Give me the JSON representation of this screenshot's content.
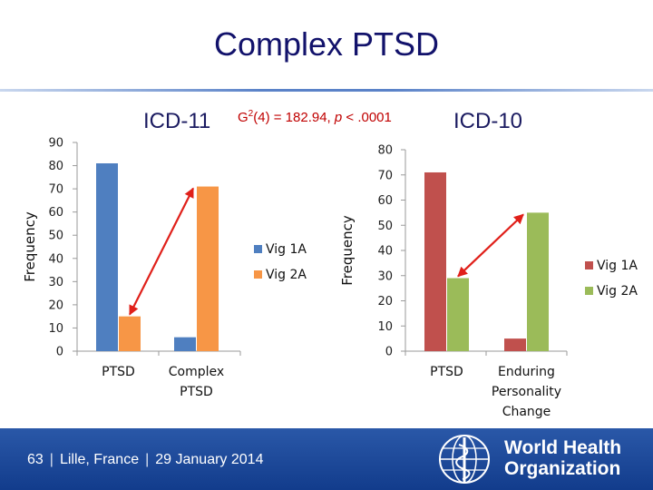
{
  "slide": {
    "title": "Complex PTSD",
    "left_label": "ICD-11",
    "right_label": "ICD-10",
    "stat_prefix": "G",
    "stat_sup": "2",
    "stat_mid": "(4) = 182.94, ",
    "stat_p": "p",
    "stat_rest": " < .0001"
  },
  "colors": {
    "title": "#12126b",
    "vig1a_left": "#4f7fc0",
    "vig2a_left": "#f79646",
    "vig1a_right": "#c0504d",
    "vig2a_right": "#9bbb59",
    "arrow": "#e0201a",
    "footer": "#1f4e9c"
  },
  "chart_data": [
    {
      "type": "bar",
      "ylabel": "Frequency",
      "ylim": [
        0,
        90
      ],
      "yticks": [
        "0",
        "10",
        "20",
        "30",
        "40",
        "50",
        "60",
        "70",
        "80",
        "90"
      ],
      "categories": [
        [
          "PTSD"
        ],
        [
          "Complex",
          "PTSD"
        ]
      ],
      "series": [
        {
          "name": "Vig 1A",
          "values": [
            81,
            6
          ]
        },
        {
          "name": "Vig 2A",
          "values": [
            15,
            71
          ]
        }
      ],
      "legend": "right",
      "arrow": {
        "from": "PTSD, Vig 2A",
        "to": "Complex PTSD, Vig 2A",
        "double_headed": true
      }
    },
    {
      "type": "bar",
      "ylabel": "Frequency",
      "ylim": [
        0,
        80
      ],
      "yticks": [
        "0",
        "10",
        "20",
        "30",
        "40",
        "50",
        "60",
        "70",
        "80"
      ],
      "categories": [
        [
          "PTSD"
        ],
        [
          "Enduring",
          "Personality",
          "Change"
        ]
      ],
      "series": [
        {
          "name": "Vig 1A",
          "values": [
            71,
            5
          ]
        },
        {
          "name": "Vig 2A",
          "values": [
            29,
            55
          ]
        }
      ],
      "legend": "right",
      "arrow": {
        "from": "PTSD, Vig 2A",
        "to": "Enduring Personality Change, Vig 2A",
        "double_headed": true
      }
    }
  ],
  "footer": {
    "page": "63",
    "location": "Lille, France",
    "date": "29 January 2014",
    "org_line1": "World Health",
    "org_line2": "Organization"
  }
}
